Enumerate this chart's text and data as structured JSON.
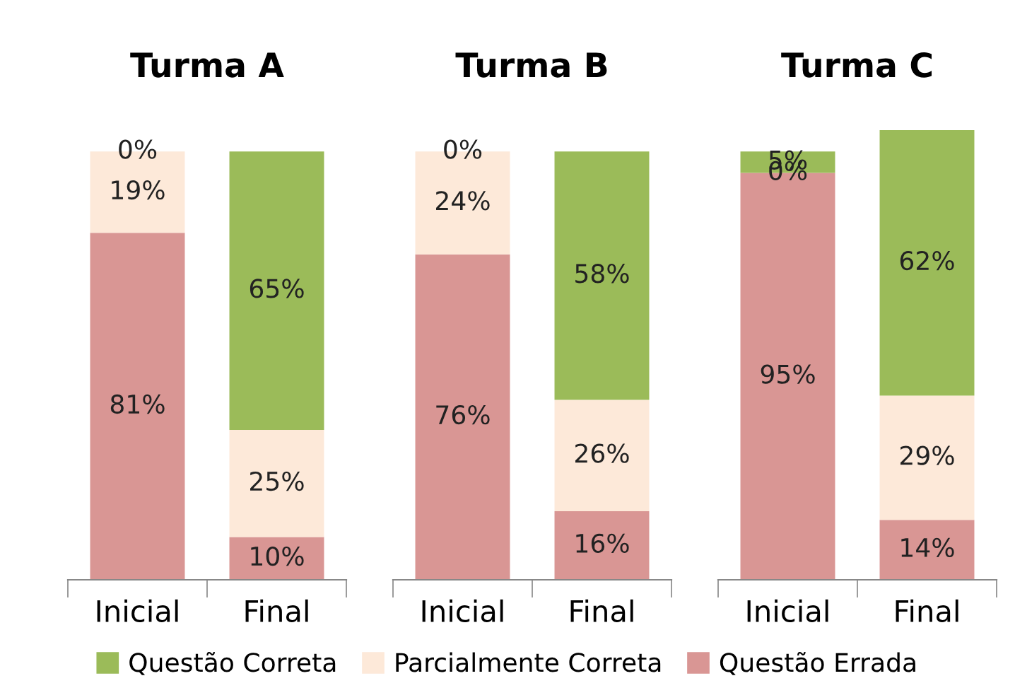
{
  "chart_data": [
    {
      "type": "bar",
      "title": "Turma A",
      "categories": [
        "Inicial",
        "Final"
      ],
      "stacked": true,
      "tick_labels": "x",
      "legend": "bottom",
      "series": [
        {
          "name": "Questão Errada",
          "color": "#d99694",
          "values": [
            81,
            10
          ],
          "value_labels": [
            "81%",
            "10%"
          ]
        },
        {
          "name": "Parcialmente Correta",
          "color": "#fde9d9",
          "values": [
            19,
            25
          ],
          "value_labels": [
            "19%",
            "25%"
          ]
        },
        {
          "name": "Questão Correta",
          "color": "#9bbb59",
          "values": [
            0,
            65
          ],
          "value_labels": [
            "0%",
            "65%"
          ]
        }
      ]
    },
    {
      "type": "bar",
      "title": "Turma B",
      "categories": [
        "Inicial",
        "Final"
      ],
      "stacked": true,
      "tick_labels": "x",
      "series": [
        {
          "color": "#d99694",
          "values": [
            76,
            16
          ],
          "value_labels": [
            "76%",
            "16%"
          ]
        },
        {
          "color": "#fde9d9",
          "values": [
            24,
            26
          ],
          "value_labels": [
            "24%",
            "26%"
          ]
        },
        {
          "color": "#9bbb59",
          "values": [
            0,
            58
          ],
          "value_labels": [
            "0%",
            "58%"
          ]
        }
      ]
    },
    {
      "type": "bar",
      "title": "Turma C",
      "categories": [
        "Inicial",
        "Final"
      ],
      "stacked": true,
      "tick_labels": "x",
      "series": [
        {
          "color": "#d99694",
          "values": [
            95,
            14
          ],
          "value_labels": [
            "95%",
            "14%"
          ]
        },
        {
          "color": "#fde9d9",
          "values": [
            0,
            29
          ],
          "value_labels": [
            "0%",
            "29%"
          ]
        },
        {
          "color": "#9bbb59",
          "values": [
            5,
            62
          ],
          "value_labels": [
            "5%",
            "62%"
          ]
        }
      ]
    }
  ]
}
